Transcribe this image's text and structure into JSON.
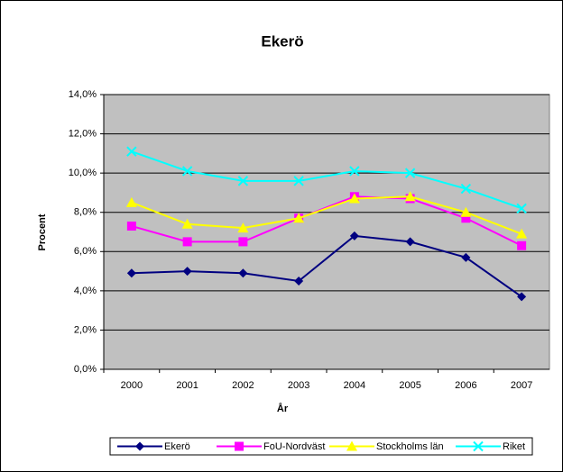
{
  "chart_data": {
    "type": "line",
    "title": "Ekerö",
    "x_label": "År",
    "y_label": "Procent",
    "categories": [
      "2000",
      "2001",
      "2002",
      "2003",
      "2004",
      "2005",
      "2006",
      "2007"
    ],
    "series": [
      {
        "name": "Ekerö",
        "color": "#000080",
        "marker": "diamond",
        "values": [
          4.9,
          5.0,
          4.9,
          4.5,
          6.8,
          6.5,
          5.7,
          3.7
        ]
      },
      {
        "name": "FoU-Nordväst",
        "color": "#ff00ff",
        "marker": "square",
        "values": [
          7.3,
          6.5,
          6.5,
          7.7,
          8.8,
          8.7,
          7.7,
          6.3
        ]
      },
      {
        "name": "Stockholms län",
        "color": "#ffff00",
        "marker": "triangle",
        "values": [
          8.5,
          7.4,
          7.2,
          7.7,
          8.7,
          8.8,
          8.0,
          6.9
        ]
      },
      {
        "name": "Riket",
        "color": "#00ffff",
        "marker": "x",
        "values": [
          11.1,
          10.1,
          9.6,
          9.6,
          10.1,
          10.0,
          9.2,
          8.2
        ]
      }
    ],
    "ylim": [
      0,
      14
    ],
    "yticks": [
      {
        "value": 0,
        "label": "0,0%"
      },
      {
        "value": 2,
        "label": "2,0%"
      },
      {
        "value": 4,
        "label": "4,0%"
      },
      {
        "value": 6,
        "label": "6,0%"
      },
      {
        "value": 8,
        "label": "8,0%"
      },
      {
        "value": 10,
        "label": "10,0%"
      },
      {
        "value": 12,
        "label": "12,0%"
      },
      {
        "value": 14,
        "label": "14,0%"
      }
    ],
    "grid": true,
    "legend": "bottom"
  }
}
